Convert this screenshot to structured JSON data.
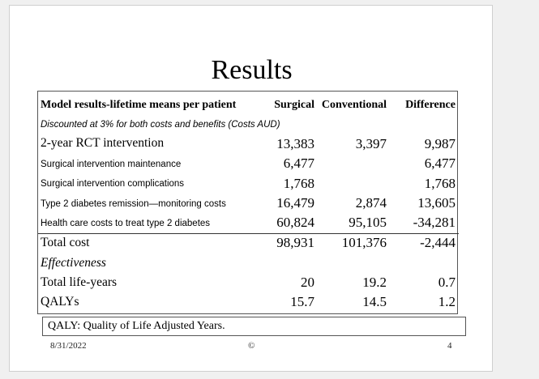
{
  "slide": {
    "title": "Results",
    "table": {
      "headers": [
        "Model results-lifetime means per patient",
        "Surgical",
        "Conventional",
        "Difference"
      ],
      "subheader": "Discounted at 3% for both costs and benefits (Costs AUD)",
      "rows": [
        {
          "label": "2-year RCT intervention",
          "surgical": "13,383",
          "conventional": "3,397",
          "difference": "9,987"
        },
        {
          "label": "Surgical intervention maintenance",
          "surgical": "6,477",
          "conventional": "",
          "difference": "6,477"
        },
        {
          "label": "Surgical intervention complications",
          "surgical": "1,768",
          "conventional": "",
          "difference": "1,768"
        },
        {
          "label": "Type 2 diabetes remission—monitoring costs",
          "surgical": "16,479",
          "conventional": "2,874",
          "difference": "13,605"
        },
        {
          "label": "Health care costs to treat type 2 diabetes",
          "surgical": "60,824",
          "conventional": "95,105",
          "difference": "-34,281"
        }
      ],
      "total": {
        "label": "Total cost",
        "surgical": "98,931",
        "conventional": "101,376",
        "difference": "-2,444"
      },
      "effectiveness_label": "Effectiveness",
      "effectiveness_rows": [
        {
          "label": "Total life-years",
          "surgical": "20",
          "conventional": "19.2",
          "difference": "0.7"
        },
        {
          "label": "QALYs",
          "surgical": "15.7",
          "conventional": "14.5",
          "difference": "1.2"
        }
      ]
    },
    "note": "QALY: Quality of Life Adjusted Years.",
    "footer": {
      "date": "8/31/2022",
      "copyright": "©",
      "page_number": "4"
    }
  }
}
